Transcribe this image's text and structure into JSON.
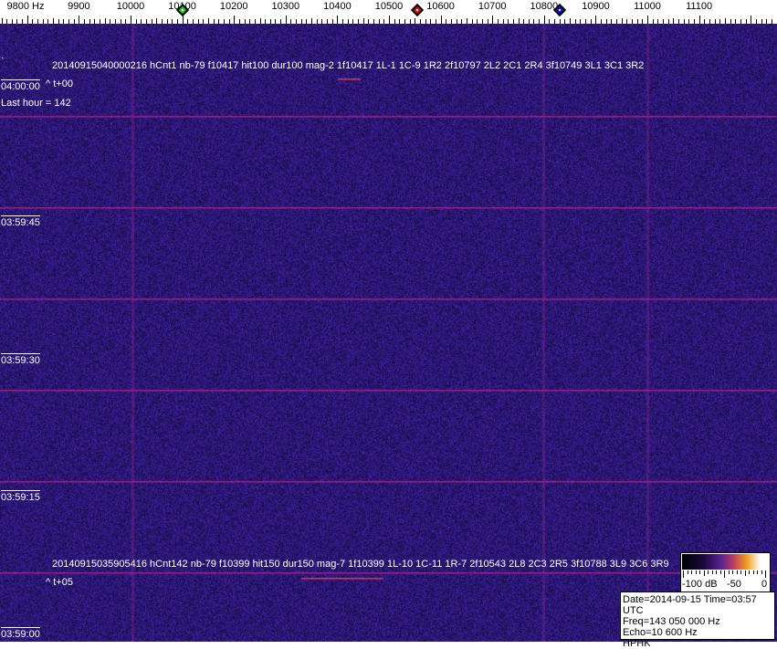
{
  "ruler": {
    "unit_label": "9800 Hz",
    "labels": [
      "9900",
      "10000",
      "10100",
      "10200",
      "10300",
      "10400",
      "10500",
      "10600",
      "10700",
      "10800",
      "10900",
      "11000",
      "11100"
    ],
    "markers": [
      {
        "name": "green-marker",
        "freq": 10100,
        "color": "#22cc22"
      },
      {
        "name": "red-marker",
        "freq": 10555,
        "color": "#cc1111"
      },
      {
        "name": "blue-marker",
        "freq": 10830,
        "color": "#1111cc"
      }
    ]
  },
  "waterfall": {
    "colors": {
      "background": "#1e1a6e",
      "line": "#a0208a"
    },
    "detection_top": "20140915040000216 hCnt1 nb-79 f10417 hit100 dur100 mag-2 1f10417 1L-1 1C-9 1R2 2f10797 2L2 2C1 2R4 3f10749 3L1 3C1 3R2",
    "offset_top": "^ t+00",
    "last_hour": "Last hour = 142",
    "detection_bottom": "20140915035905416 hCnt142 nb-79 f10399 hit150 dur150 mag-7 1f10399 1L-10 1C-11 1R-7 2f10543 2L8 2C3 2R5 3f10788 3L9 3C6 3R9",
    "offset_bottom": "^ t+05",
    "time_labels": [
      "04:00:00",
      "03:59:45",
      "03:59:30",
      "03:59:15",
      "03:59:00"
    ]
  },
  "scale": {
    "labels": [
      "-100 dB",
      "-50",
      "0"
    ]
  },
  "info": {
    "datetime": "Date=2014-09-15 Time=03:57 UTC",
    "freq": "Freq=143 050 000 Hz",
    "echo": "Echo=10 600 Hz",
    "station": "HPHK"
  }
}
